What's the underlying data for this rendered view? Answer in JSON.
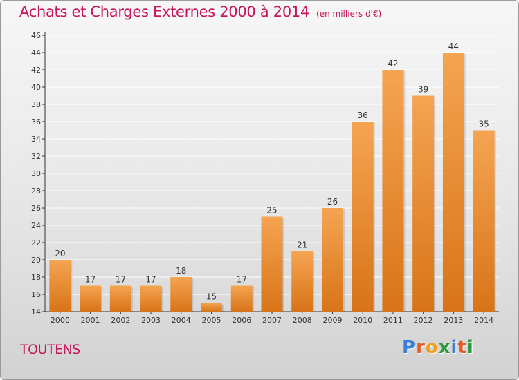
{
  "title": "Achats et Charges Externes 2000 à 2014",
  "unit_note": "(en milliers d'€)",
  "place": "TOUTENS",
  "logo": {
    "text": "Proxiti",
    "letters": [
      {
        "ch": "P",
        "color": "#3a7fd5"
      },
      {
        "ch": "r",
        "color": "#e25c2c"
      },
      {
        "ch": "o",
        "color": "#f0a020"
      },
      {
        "ch": "x",
        "color": "#2e9a3e"
      },
      {
        "ch": "i",
        "color": "#3a7fd5"
      },
      {
        "ch": "t",
        "color": "#e25c2c"
      },
      {
        "ch": "i",
        "color": "#2e9a3e"
      }
    ]
  },
  "colors": {
    "title": "#c8145a",
    "bar_top": "#f5a452",
    "bar_bottom": "#d87418",
    "axis": "#333333"
  },
  "chart_data": {
    "type": "bar",
    "categories": [
      "2000",
      "2001",
      "2002",
      "2003",
      "2004",
      "2005",
      "2006",
      "2007",
      "2008",
      "2009",
      "2010",
      "2011",
      "2012",
      "2013",
      "2014"
    ],
    "values": [
      20,
      17,
      17,
      17,
      18,
      15,
      17,
      25,
      21,
      26,
      36,
      42,
      39,
      44,
      35
    ],
    "ylim": [
      14,
      46
    ],
    "yticks": [
      14,
      16,
      18,
      20,
      22,
      24,
      26,
      28,
      30,
      32,
      34,
      36,
      38,
      40,
      42,
      44,
      46
    ],
    "grid": true,
    "legend": "none",
    "xlabel": "",
    "ylabel": ""
  }
}
